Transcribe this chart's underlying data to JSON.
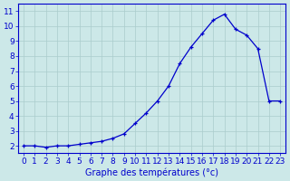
{
  "hours": [
    0,
    1,
    2,
    3,
    4,
    5,
    6,
    7,
    8,
    9,
    10,
    11,
    12,
    13,
    14,
    15,
    16,
    17,
    18,
    19,
    20,
    21,
    22,
    23
  ],
  "temps": [
    2.0,
    2.0,
    1.9,
    2.0,
    2.0,
    2.1,
    2.2,
    2.3,
    2.5,
    2.8,
    3.5,
    4.2,
    5.0,
    6.0,
    7.5,
    8.6,
    9.5,
    10.4,
    10.8,
    9.8,
    9.4,
    8.5,
    5.0,
    5.0
  ],
  "line_color": "#0000cc",
  "marker": "+",
  "background_color": "#cce8e8",
  "grid_color": "#aacccc",
  "xlabel": "Graphe des températures (°c)",
  "ylim": [
    1.5,
    11.5
  ],
  "xlim": [
    -0.5,
    23.5
  ],
  "yticks": [
    2,
    3,
    4,
    5,
    6,
    7,
    8,
    9,
    10,
    11
  ],
  "xticks": [
    0,
    1,
    2,
    3,
    4,
    5,
    6,
    7,
    8,
    9,
    10,
    11,
    12,
    13,
    14,
    15,
    16,
    17,
    18,
    19,
    20,
    21,
    22,
    23
  ],
  "axis_color": "#0000cc",
  "font_size": 6.5,
  "xlabel_fontsize": 7.0,
  "linewidth": 0.9,
  "markersize": 3.5
}
